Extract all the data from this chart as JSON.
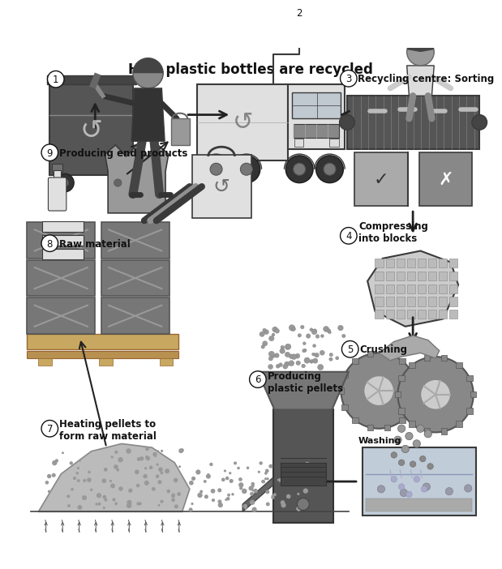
{
  "title": "How plastic bottles are recycled",
  "title_fontsize": 12,
  "title_weight": "bold",
  "bg_color": "#ffffff",
  "gray_dark": "#3a3a3a",
  "gray_mid": "#707070",
  "gray_mid2": "#909090",
  "gray_light": "#bbbbbb",
  "gray_vlight": "#e0e0e0",
  "arrow_color": "#222222",
  "label_fontsize": 8.0,
  "num_fontsize": 9,
  "steps": [
    {
      "num": "1",
      "label": ""
    },
    {
      "num": "2",
      "label": ""
    },
    {
      "num": "3",
      "label": "Recycling centre: Sorting"
    },
    {
      "num": "4",
      "label": "Compressing\ninto blocks"
    },
    {
      "num": "5",
      "label": "Crushing"
    },
    {
      "num": "6",
      "label": "Producing\nplastic pellets"
    },
    {
      "num": "7",
      "label": "Heating pellets to\nform raw material"
    },
    {
      "num": "8",
      "label": "Raw material"
    },
    {
      "num": "9",
      "label": "Producing end products"
    }
  ]
}
